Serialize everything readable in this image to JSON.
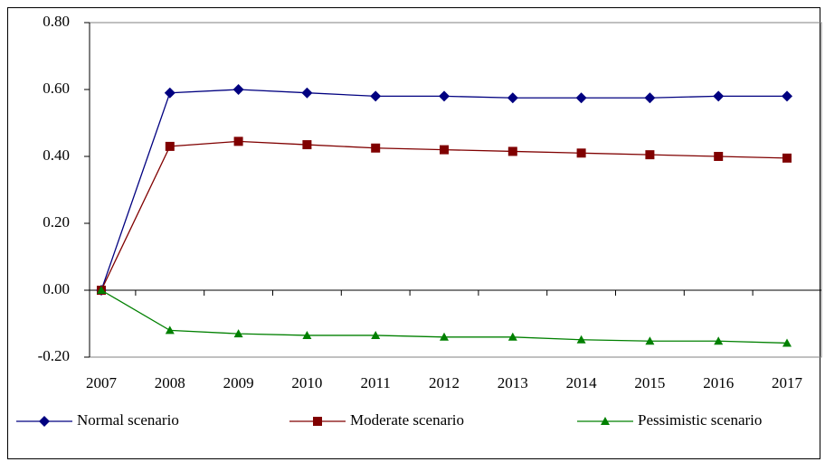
{
  "chart_data": {
    "type": "line",
    "categories": [
      "2007",
      "2008",
      "2009",
      "2010",
      "2011",
      "2012",
      "2013",
      "2014",
      "2015",
      "2016",
      "2017"
    ],
    "series": [
      {
        "name": "Normal scenario",
        "color": "#000080",
        "marker": "diamond",
        "values": [
          0,
          0.59,
          0.6,
          0.59,
          0.58,
          0.58,
          0.575,
          0.575,
          0.575,
          0.58,
          0.58
        ]
      },
      {
        "name": "Moderate scenario",
        "color": "#800000",
        "marker": "square",
        "values": [
          0,
          0.43,
          0.445,
          0.435,
          0.425,
          0.42,
          0.415,
          0.41,
          0.405,
          0.4,
          0.395
        ]
      },
      {
        "name": "Pessimistic scenario",
        "color": "#008000",
        "marker": "triangle",
        "values": [
          0,
          -0.12,
          -0.13,
          -0.135,
          -0.135,
          -0.14,
          -0.14,
          -0.148,
          -0.152,
          -0.152,
          -0.158
        ]
      }
    ],
    "ylim": [
      -0.2,
      0.8
    ],
    "yticks": [
      {
        "value": -0.2,
        "label": "-0.20"
      },
      {
        "value": 0,
        "label": "0.00"
      },
      {
        "value": 0.2,
        "label": "0.20"
      },
      {
        "value": 0.4,
        "label": "0.40"
      },
      {
        "value": 0.6,
        "label": "0.60"
      },
      {
        "value": 0.8,
        "label": "0.80"
      }
    ],
    "grid": false,
    "legend": "bottom"
  }
}
